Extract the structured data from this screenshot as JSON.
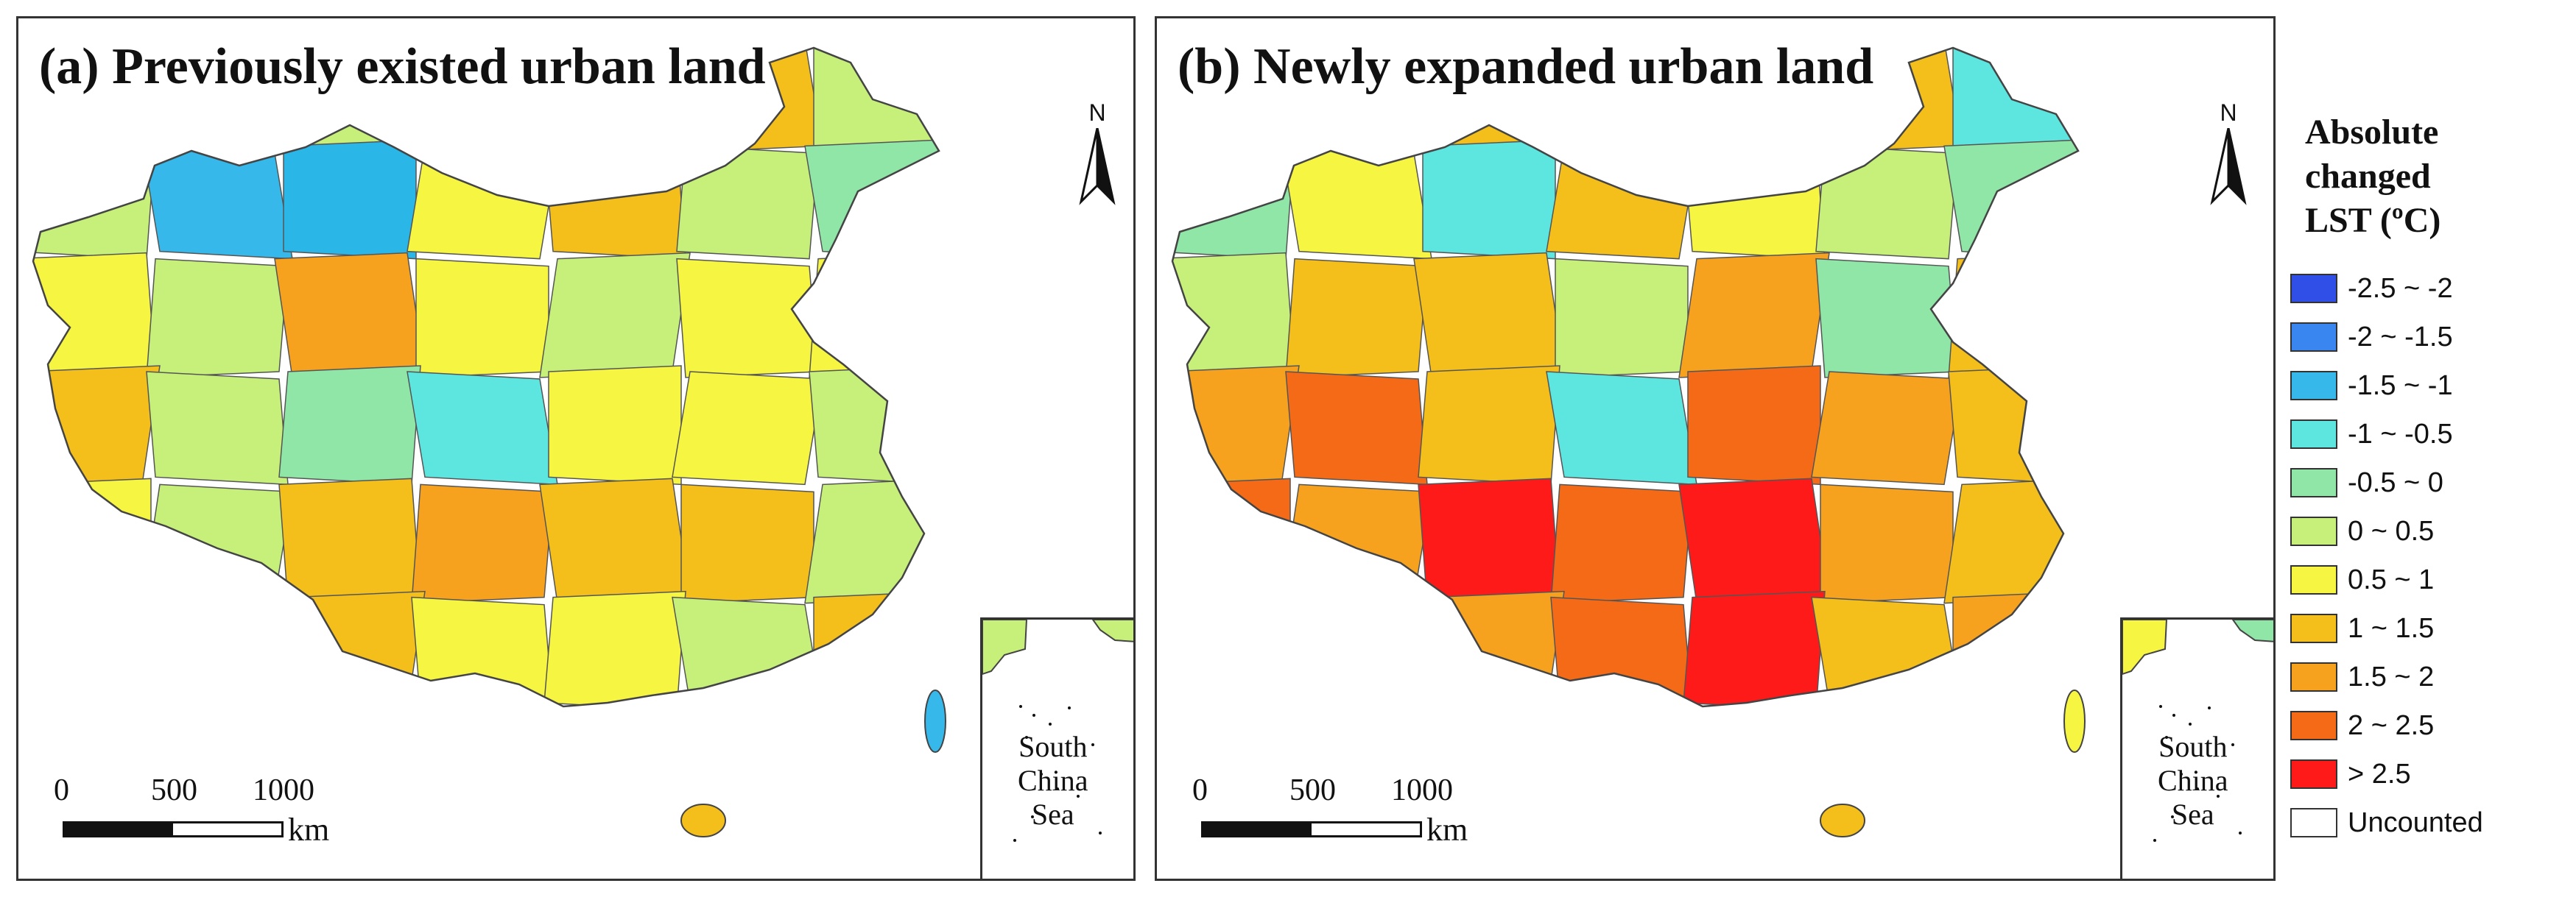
{
  "panels": [
    {
      "title": "(a) Previously existed urban land",
      "regions": [
        "#8fe6a6",
        "#c7f07a",
        "#c7f07a",
        "#f5f542",
        "#8fe6a6",
        "#f4bf1a",
        "#c7f07a",
        "#c7f07a",
        "#36b8ea",
        "#2bb6e8",
        "#f5f542",
        "#f4bf1a",
        "#c7f07a",
        "#8fe6a6",
        "#f5f542",
        "#c7f07a",
        "#f7a21f",
        "#f5f542",
        "#c7f07a",
        "#f5f542",
        "#f5f542",
        "#f4bf1a",
        "#c7f07a",
        "#8fe6a6",
        "#5de6e0",
        "#f5f542",
        "#f5f542",
        "#c7f07a",
        "#f5f542",
        "#c7f07a",
        "#f4bf1a",
        "#f7a21f",
        "#f4bf1a",
        "#f4bf1a",
        "#c7f07a",
        "#f5f542",
        "#f7a21f",
        "#f4bf1a",
        "#f5f542",
        "#f5f542",
        "#c7f07a",
        "#f4bf1a"
      ]
    },
    {
      "title": "(b) Newly expanded urban land",
      "regions": [
        "#f5f542",
        "#c7f07a",
        "#f4bf1a",
        "#f5f542",
        "#36b8ea",
        "#f4bf1a",
        "#5de6e0",
        "#8fe6a6",
        "#f5f542",
        "#5de6e0",
        "#f4bf1a",
        "#f5f542",
        "#c7f07a",
        "#8fe6a6",
        "#c7f07a",
        "#f4bf1a",
        "#f4bf1a",
        "#c7f07a",
        "#f7a21f",
        "#8fe6a6",
        "#f4bf1a",
        "#f7a21f",
        "#f56a16",
        "#f4bf1a",
        "#5de6e0",
        "#f56a16",
        "#f7a21f",
        "#f4bf1a",
        "#f56a16",
        "#f7a21f",
        "#ff1a1a",
        "#f56a16",
        "#ff1a1a",
        "#f7a21f",
        "#f4bf1a",
        "#f56a16",
        "#f56a16",
        "#f7a21f",
        "#f56a16",
        "#ff1a1a",
        "#f4bf1a",
        "#f7a21f"
      ]
    }
  ],
  "north_label": "N",
  "inset_label": [
    "South",
    "China",
    "Sea"
  ],
  "scale": {
    "ticks": [
      "0",
      "500",
      "1000"
    ],
    "unit": "km"
  },
  "legend": {
    "title": [
      "Absolute",
      "changed",
      "LST (ºC)"
    ],
    "items": [
      {
        "label": "-2.5 ~ -2",
        "color": "#2f4fe6"
      },
      {
        "label": "-2 ~ -1.5",
        "color": "#3a86f0"
      },
      {
        "label": "-1.5 ~ -1",
        "color": "#36b8ea"
      },
      {
        "label": "-1 ~ -0.5",
        "color": "#5de6e0"
      },
      {
        "label": "-0.5 ~ 0",
        "color": "#8fe6a6"
      },
      {
        "label": "0 ~ 0.5",
        "color": "#c7f07a"
      },
      {
        "label": "0.5 ~ 1",
        "color": "#f5f542"
      },
      {
        "label": "1 ~ 1.5",
        "color": "#f4bf1a"
      },
      {
        "label": "1.5 ~ 2",
        "color": "#f7a21f"
      },
      {
        "label": "2 ~ 2.5",
        "color": "#f56a16"
      },
      {
        "label": "> 2.5",
        "color": "#ff1a1a"
      },
      {
        "label": "Uncounted",
        "color": "#ffffff"
      }
    ]
  }
}
